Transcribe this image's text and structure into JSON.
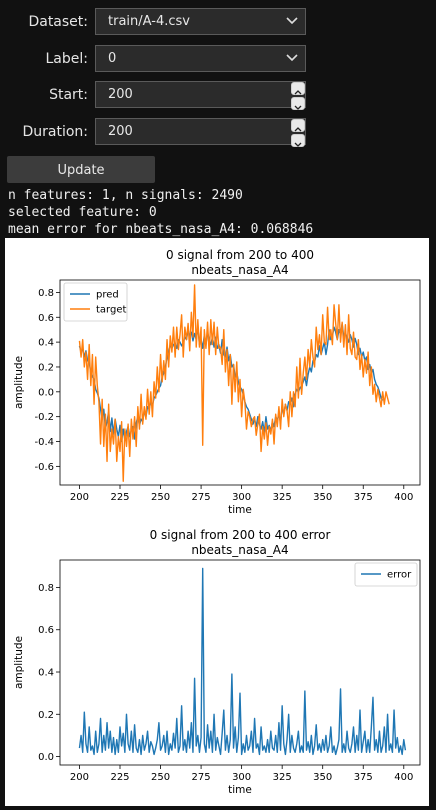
{
  "controls": {
    "dataset_label": "Dataset:",
    "dataset_value": "train/A-4.csv",
    "label_label": "Label:",
    "label_value": "0",
    "start_label": "Start:",
    "start_value": "200",
    "duration_label": "Duration:",
    "duration_value": "200",
    "update_button": "Update"
  },
  "info": {
    "line1": "n features: 1, n signals: 2490",
    "line2": "selected feature: 0",
    "line3": "mean error for nbeats_nasa_A4: 0.068846"
  },
  "colors": {
    "pred": "#1f77b4",
    "target": "#ff7f0e",
    "error": "#1f77b4"
  },
  "chart_data": [
    {
      "type": "line",
      "title": "0 signal from 200 to 400",
      "subtitle": "nbeats_nasa_A4",
      "xlabel": "time",
      "ylabel": "amplitude",
      "xlim": [
        188,
        410
      ],
      "ylim": [
        -0.75,
        0.9
      ],
      "x_ticks": [
        200,
        225,
        250,
        275,
        300,
        325,
        350,
        375,
        400
      ],
      "y_ticks": [
        -0.6,
        -0.4,
        -0.2,
        0.0,
        0.2,
        0.4,
        0.6,
        0.8
      ],
      "legend_position": "top-left",
      "x_start": 200,
      "x_step": 1,
      "series": [
        {
          "name": "pred",
          "values": [
            0.37,
            0.32,
            0.35,
            0.28,
            0.33,
            0.25,
            0.24,
            0.15,
            0.12,
            0.1,
            0.02,
            -0.01,
            -0.05,
            -0.14,
            -0.22,
            -0.14,
            -0.3,
            -0.24,
            -0.16,
            -0.32,
            -0.21,
            -0.34,
            -0.22,
            -0.3,
            -0.36,
            -0.27,
            -0.4,
            -0.3,
            -0.39,
            -0.32,
            -0.28,
            -0.36,
            -0.31,
            -0.28,
            -0.38,
            -0.25,
            -0.2,
            -0.27,
            -0.22,
            -0.24,
            -0.15,
            -0.2,
            -0.12,
            -0.14,
            -0.08,
            -0.11,
            -0.05,
            -0.03,
            0.0,
            0.03,
            0.05,
            0.12,
            0.15,
            0.2,
            0.28,
            0.32,
            0.38,
            0.35,
            0.38,
            0.39,
            0.35,
            0.42,
            0.4,
            0.37,
            0.4,
            0.44,
            0.42,
            0.5,
            0.45,
            0.48,
            0.41,
            0.47,
            0.42,
            0.52,
            0.38,
            0.42,
            0.35,
            0.46,
            0.38,
            0.48,
            0.42,
            0.38,
            0.44,
            0.36,
            0.44,
            0.35,
            0.38,
            0.31,
            0.42,
            0.3,
            0.28,
            0.36,
            0.25,
            0.3,
            0.2,
            0.22,
            0.12,
            0.16,
            0.08,
            0.04,
            0.02,
            -0.02,
            -0.08,
            -0.12,
            -0.14,
            -0.18,
            -0.22,
            -0.26,
            -0.22,
            -0.28,
            -0.2,
            -0.26,
            -0.3,
            -0.24,
            -0.33,
            -0.2,
            -0.3,
            -0.27,
            -0.32,
            -0.24,
            -0.28,
            -0.2,
            -0.23,
            -0.18,
            -0.25,
            -0.12,
            -0.18,
            -0.1,
            -0.15,
            -0.08,
            -0.1,
            -0.05,
            -0.12,
            -0.02,
            0.02,
            0.0,
            0.03,
            0.05,
            0.08,
            0.12,
            0.05,
            0.14,
            0.2,
            0.16,
            0.25,
            0.24,
            0.3,
            0.28,
            0.37,
            0.3,
            0.35,
            0.4,
            0.3,
            0.38,
            0.5,
            0.42,
            0.45,
            0.52,
            0.48,
            0.42,
            0.5,
            0.46,
            0.55,
            0.44,
            0.48,
            0.43,
            0.4,
            0.46,
            0.42,
            0.36,
            0.43,
            0.38,
            0.3,
            0.35,
            0.28,
            0.32,
            0.25,
            0.28,
            0.18,
            0.22,
            0.15,
            0.18,
            0.1,
            0.06,
            0.04,
            0.0,
            -0.05,
            -0.07
          ],
          "x_range": [
            200,
            399
          ]
        },
        {
          "name": "target",
          "values": [
            0.41,
            0.28,
            0.42,
            0.2,
            0.32,
            0.1,
            0.38,
            0.05,
            0.3,
            -0.1,
            0.28,
            0.05,
            -0.08,
            -0.42,
            -0.06,
            -0.44,
            -0.18,
            -0.56,
            -0.1,
            -0.48,
            -0.3,
            -0.42,
            -0.22,
            -0.56,
            -0.36,
            -0.48,
            -0.24,
            -0.72,
            -0.3,
            -0.44,
            -0.26,
            -0.52,
            -0.22,
            -0.38,
            -0.2,
            -0.44,
            -0.12,
            -0.3,
            -0.02,
            -0.26,
            -0.12,
            -0.22,
            0.02,
            -0.18,
            0.0,
            -0.2,
            0.08,
            -0.05,
            0.2,
            0.0,
            0.3,
            0.08,
            0.25,
            0.1,
            0.42,
            0.2,
            0.45,
            0.32,
            0.52,
            0.28,
            0.52,
            0.34,
            0.46,
            0.62,
            0.28,
            0.52,
            0.42,
            0.55,
            0.33,
            0.64,
            0.44,
            0.86,
            0.36,
            0.58,
            0.36,
            0.52,
            -0.43,
            0.5,
            0.35,
            0.56,
            0.3,
            0.58,
            0.38,
            0.56,
            0.3,
            0.52,
            0.35,
            0.36,
            0.22,
            0.5,
            0.16,
            0.34,
            0.05,
            0.3,
            -0.1,
            0.22,
            0.0,
            0.24,
            -0.08,
            0.1,
            -0.2,
            0.02,
            -0.08,
            -0.3,
            -0.16,
            -0.2,
            -0.28,
            -0.22,
            -0.2,
            -0.35,
            -0.26,
            -0.18,
            -0.48,
            -0.28,
            -0.38,
            -0.25,
            -0.43,
            -0.28,
            -0.34,
            -0.22,
            -0.42,
            -0.18,
            -0.28,
            -0.12,
            -0.3,
            -0.06,
            -0.2,
            -0.1,
            -0.15,
            -0.28,
            0.0,
            -0.2,
            0.0,
            -0.12,
            0.2,
            -0.05,
            0.27,
            -0.02,
            0.15,
            0.28,
            0.1,
            0.34,
            0.2,
            0.42,
            0.28,
            0.2,
            0.52,
            0.34,
            0.46,
            0.3,
            0.62,
            0.4,
            0.38,
            0.68,
            0.42,
            0.5,
            0.38,
            0.7,
            0.55,
            0.42,
            0.7,
            0.4,
            0.56,
            0.36,
            0.54,
            0.3,
            0.62,
            0.35,
            0.3,
            0.48,
            0.28,
            0.26,
            0.42,
            0.18,
            0.3,
            0.12,
            0.26,
            0.15,
            0.32,
            0.05,
            0.2,
            -0.02,
            0.06,
            -0.08,
            0.02,
            -0.05,
            -0.12,
            0.0,
            -0.1,
            0.0,
            -0.05,
            -0.1
          ],
          "x_range": [
            200,
            399
          ]
        }
      ]
    },
    {
      "type": "line",
      "title": "0 signal from 200 to 400  error",
      "subtitle": "nbeats_nasa_A4",
      "xlabel": "time",
      "ylabel": "amplitude",
      "xlim": [
        188,
        410
      ],
      "ylim": [
        -0.04,
        0.93
      ],
      "x_ticks": [
        200,
        225,
        250,
        275,
        300,
        325,
        350,
        375,
        400
      ],
      "y_ticks": [
        0.0,
        0.2,
        0.4,
        0.6,
        0.8
      ],
      "legend_position": "top-right",
      "x_start": 200,
      "x_step": 1,
      "series": [
        {
          "name": "error",
          "values": [
            0.04,
            0.1,
            0.02,
            0.21,
            0.06,
            0.02,
            0.14,
            0.03,
            0.05,
            0.01,
            0.12,
            0.02,
            0.06,
            0.18,
            0.02,
            0.1,
            0.03,
            0.16,
            0.04,
            0.12,
            0.02,
            0.09,
            0.01,
            0.08,
            0.02,
            0.14,
            0.05,
            0.11,
            0.02,
            0.2,
            0.06,
            0.03,
            0.12,
            0.02,
            0.15,
            0.04,
            0.02,
            0.08,
            0.01,
            0.1,
            0.03,
            0.06,
            0.12,
            0.02,
            0.07,
            0.05,
            0.01,
            0.04,
            0.08,
            0.16,
            0.03,
            0.05,
            0.1,
            0.02,
            0.12,
            0.01,
            0.06,
            0.03,
            0.11,
            0.04,
            0.18,
            0.02,
            0.05,
            0.24,
            0.03,
            0.08,
            0.02,
            0.12,
            0.04,
            0.16,
            0.02,
            0.37,
            0.05,
            0.1,
            0.02,
            0.09,
            0.89,
            0.06,
            0.02,
            0.15,
            0.04,
            0.12,
            0.02,
            0.2,
            0.03,
            0.09,
            0.05,
            0.01,
            0.11,
            0.22,
            0.03,
            0.1,
            0.02,
            0.08,
            0.39,
            0.04,
            0.14,
            0.02,
            0.09,
            0.3,
            0.01,
            0.06,
            0.02,
            0.1,
            0.03,
            0.05,
            0.12,
            0.02,
            0.18,
            0.04,
            0.06,
            0.01,
            0.14,
            0.03,
            0.05,
            0.02,
            0.08,
            0.02,
            0.12,
            0.04,
            0.03,
            0.1,
            0.02,
            0.16,
            0.03,
            0.24,
            0.06,
            0.01,
            0.08,
            0.2,
            0.02,
            0.1,
            0.04,
            0.02,
            0.06,
            0.12,
            0.02,
            0.05,
            0.02,
            0.31,
            0.03,
            0.07,
            0.02,
            0.1,
            0.01,
            0.05,
            0.15,
            0.03,
            0.06,
            0.02,
            0.08,
            0.03,
            0.1,
            0.02,
            0.05,
            0.14,
            0.02,
            0.05,
            0.01,
            0.04,
            0.08,
            0.32,
            0.02,
            0.06,
            0.02,
            0.12,
            0.04,
            0.02,
            0.06,
            0.14,
            0.02,
            0.1,
            0.03,
            0.22,
            0.02,
            0.07,
            0.12,
            0.02,
            0.08,
            0.02,
            0.14,
            0.28,
            0.03,
            0.08,
            0.02,
            0.12,
            0.02,
            0.05,
            0.14,
            0.02,
            0.2,
            0.03,
            0.06,
            0.02,
            0.22,
            0.04,
            0.09,
            0.02,
            0.05,
            0.01,
            0.08,
            0.03
          ],
          "x_range": [
            200,
            399
          ]
        }
      ]
    }
  ]
}
